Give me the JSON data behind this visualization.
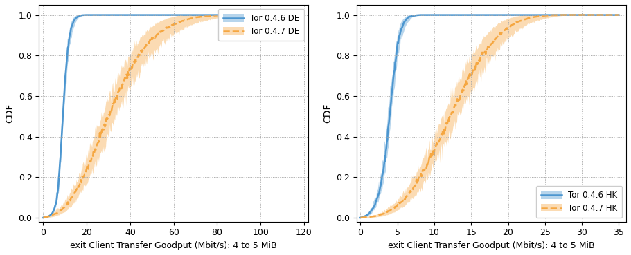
{
  "fig_width": 9.11,
  "fig_height": 3.69,
  "dpi": 100,
  "background_color": "#ffffff",
  "plots": [
    {
      "xlabel": "exit Client Transfer Goodput (Mbit/s): 4 to 5 MiB",
      "ylabel": "CDF",
      "xlim": [
        -2,
        122
      ],
      "ylim": [
        -0.02,
        1.05
      ],
      "xticks": [
        0,
        20,
        40,
        60,
        80,
        100,
        120
      ],
      "yticks": [
        0.0,
        0.2,
        0.4,
        0.6,
        0.8,
        1.0
      ],
      "legend_loc": "upper right",
      "legend_inside": true,
      "series": [
        {
          "label": "Tor 0.4.6 DE",
          "color": "#4c96d0",
          "linestyle": "-",
          "linewidth": 1.8,
          "fill_alpha": 0.4,
          "median_x": [
            0,
            1,
            2,
            3,
            4,
            5,
            6,
            7,
            8,
            9,
            10,
            11,
            12,
            13,
            14,
            15,
            16,
            17,
            18,
            19,
            20,
            22,
            24,
            120
          ],
          "median_y": [
            0.0,
            0.002,
            0.005,
            0.01,
            0.02,
            0.04,
            0.08,
            0.17,
            0.32,
            0.5,
            0.67,
            0.8,
            0.89,
            0.94,
            0.97,
            0.985,
            0.993,
            0.997,
            0.999,
            1.0,
            1.0,
            1.0,
            1.0,
            1.0
          ],
          "low_y": [
            0.0,
            0.001,
            0.003,
            0.007,
            0.015,
            0.03,
            0.06,
            0.13,
            0.26,
            0.44,
            0.61,
            0.74,
            0.84,
            0.9,
            0.94,
            0.97,
            0.985,
            0.993,
            0.998,
            1.0,
            1.0,
            1.0,
            1.0,
            1.0
          ],
          "high_y": [
            0.0,
            0.004,
            0.009,
            0.015,
            0.03,
            0.06,
            0.12,
            0.23,
            0.4,
            0.58,
            0.74,
            0.86,
            0.93,
            0.97,
            0.99,
            0.998,
            1.0,
            1.0,
            1.0,
            1.0,
            1.0,
            1.0,
            1.0,
            1.0
          ]
        },
        {
          "label": "Tor 0.4.7 DE",
          "color": "#f5a742",
          "linestyle": "--",
          "linewidth": 1.8,
          "fill_alpha": 0.4,
          "median_x": [
            0,
            2,
            4,
            6,
            8,
            10,
            12,
            14,
            16,
            18,
            20,
            22,
            24,
            26,
            28,
            30,
            32,
            34,
            36,
            38,
            40,
            42,
            44,
            46,
            48,
            50,
            52,
            54,
            56,
            58,
            60,
            62,
            64,
            66,
            68,
            70,
            75,
            80,
            85,
            90,
            95,
            120
          ],
          "median_y": [
            0.0,
            0.005,
            0.012,
            0.022,
            0.036,
            0.055,
            0.08,
            0.112,
            0.15,
            0.193,
            0.24,
            0.29,
            0.342,
            0.395,
            0.449,
            0.502,
            0.554,
            0.604,
            0.65,
            0.694,
            0.735,
            0.771,
            0.804,
            0.833,
            0.859,
            0.881,
            0.9,
            0.916,
            0.93,
            0.942,
            0.953,
            0.962,
            0.97,
            0.977,
            0.983,
            0.988,
            0.994,
            0.998,
            1.0,
            1.0,
            1.0,
            1.0
          ],
          "low_y": [
            0.0,
            0.001,
            0.004,
            0.01,
            0.018,
            0.03,
            0.048,
            0.072,
            0.101,
            0.135,
            0.174,
            0.216,
            0.262,
            0.311,
            0.362,
            0.412,
            0.463,
            0.512,
            0.559,
            0.603,
            0.645,
            0.683,
            0.718,
            0.75,
            0.78,
            0.807,
            0.831,
            0.852,
            0.871,
            0.888,
            0.903,
            0.917,
            0.929,
            0.94,
            0.95,
            0.96,
            0.974,
            0.985,
            0.993,
            0.998,
            1.0,
            1.0
          ],
          "high_y": [
            0.0,
            0.01,
            0.022,
            0.038,
            0.058,
            0.084,
            0.116,
            0.156,
            0.202,
            0.254,
            0.308,
            0.365,
            0.422,
            0.479,
            0.535,
            0.589,
            0.641,
            0.69,
            0.735,
            0.777,
            0.814,
            0.848,
            0.877,
            0.903,
            0.925,
            0.943,
            0.958,
            0.97,
            0.98,
            0.987,
            0.993,
            0.997,
            0.999,
            1.0,
            1.0,
            1.0,
            1.0,
            1.0,
            1.0,
            1.0,
            1.0,
            1.0
          ]
        }
      ]
    },
    {
      "xlabel": "exit Client Transfer Goodput (Mbit/s): 4 to 5 MiB",
      "ylabel": "CDF",
      "xlim": [
        -0.5,
        36
      ],
      "ylim": [
        -0.02,
        1.05
      ],
      "xticks": [
        0,
        5,
        10,
        15,
        20,
        25,
        30,
        35
      ],
      "yticks": [
        0.0,
        0.2,
        0.4,
        0.6,
        0.8,
        1.0
      ],
      "legend_loc": "lower right",
      "legend_inside": false,
      "series": [
        {
          "label": "Tor 0.4.6 HK",
          "color": "#4c96d0",
          "linestyle": "-",
          "linewidth": 1.8,
          "fill_alpha": 0.4,
          "median_x": [
            0,
            0.5,
            1.0,
            1.5,
            2.0,
            2.5,
            3.0,
            3.5,
            4.0,
            4.5,
            5.0,
            5.5,
            6.0,
            6.5,
            7.0,
            7.5,
            8.0,
            35
          ],
          "median_y": [
            0.0,
            0.005,
            0.015,
            0.035,
            0.07,
            0.12,
            0.21,
            0.34,
            0.52,
            0.7,
            0.85,
            0.93,
            0.97,
            0.99,
            0.995,
            0.998,
            1.0,
            1.0
          ],
          "low_y": [
            0.0,
            0.002,
            0.008,
            0.022,
            0.05,
            0.09,
            0.16,
            0.27,
            0.44,
            0.62,
            0.78,
            0.88,
            0.94,
            0.97,
            0.99,
            0.996,
            0.999,
            1.0
          ],
          "high_y": [
            0.0,
            0.01,
            0.025,
            0.055,
            0.1,
            0.17,
            0.28,
            0.43,
            0.62,
            0.79,
            0.91,
            0.97,
            0.99,
            1.0,
            1.0,
            1.0,
            1.0,
            1.0
          ]
        },
        {
          "label": "Tor 0.4.7 HK",
          "color": "#f5a742",
          "linestyle": "--",
          "linewidth": 1.8,
          "fill_alpha": 0.4,
          "median_x": [
            0,
            1,
            2,
            3,
            4,
            5,
            6,
            7,
            8,
            9,
            10,
            11,
            12,
            13,
            14,
            15,
            16,
            17,
            18,
            19,
            20,
            21,
            22,
            23,
            24,
            25,
            26,
            27,
            28,
            29,
            30,
            35
          ],
          "median_y": [
            0.0,
            0.003,
            0.008,
            0.018,
            0.035,
            0.06,
            0.095,
            0.14,
            0.195,
            0.26,
            0.333,
            0.41,
            0.49,
            0.568,
            0.642,
            0.71,
            0.772,
            0.826,
            0.872,
            0.909,
            0.938,
            0.96,
            0.975,
            0.986,
            0.993,
            0.997,
            0.999,
            1.0,
            1.0,
            1.0,
            1.0,
            1.0
          ],
          "low_y": [
            0.0,
            0.001,
            0.003,
            0.008,
            0.018,
            0.035,
            0.06,
            0.095,
            0.14,
            0.195,
            0.258,
            0.328,
            0.402,
            0.478,
            0.553,
            0.624,
            0.69,
            0.749,
            0.801,
            0.847,
            0.885,
            0.916,
            0.941,
            0.96,
            0.974,
            0.984,
            0.991,
            0.996,
            0.998,
            1.0,
            1.0,
            1.0
          ],
          "high_y": [
            0.0,
            0.006,
            0.015,
            0.03,
            0.055,
            0.09,
            0.135,
            0.19,
            0.255,
            0.328,
            0.408,
            0.492,
            0.576,
            0.656,
            0.73,
            0.796,
            0.853,
            0.9,
            0.938,
            0.965,
            0.983,
            0.994,
            0.998,
            1.0,
            1.0,
            1.0,
            1.0,
            1.0,
            1.0,
            1.0,
            1.0,
            1.0
          ]
        }
      ]
    }
  ]
}
